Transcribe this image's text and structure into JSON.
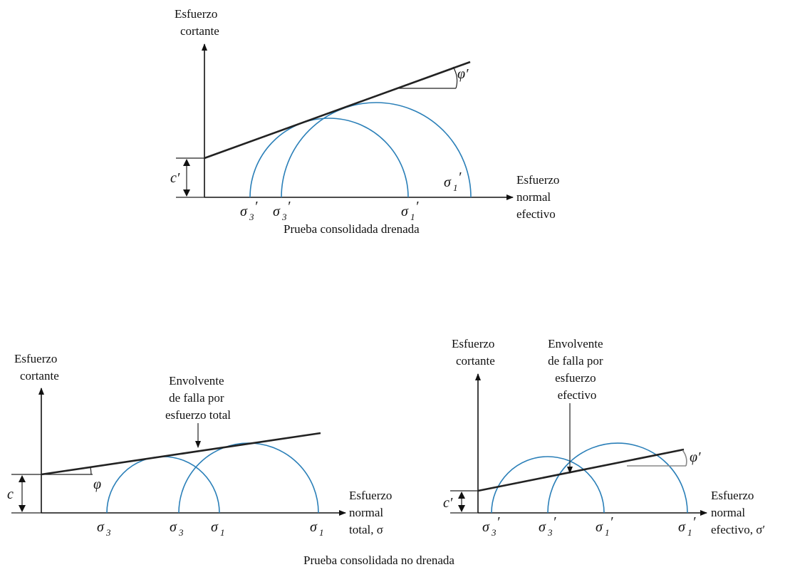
{
  "top": {
    "y_label": [
      "Esfuerzo",
      "cortante"
    ],
    "x_label": [
      "Esfuerzo",
      "normal",
      "efectivo"
    ],
    "intercept_label": "c′",
    "angle_label": "φ′",
    "stress_labels": {
      "s3a": "3",
      "s3b": "3",
      "s1a": "1",
      "s1b": "1"
    },
    "caption": "Prueba consolidada drenada"
  },
  "left": {
    "y_label": [
      "Esfuerzo",
      "cortante"
    ],
    "x_label": [
      "Esfuerzo",
      "normal",
      "total, σ"
    ],
    "intercept_label": "c",
    "angle_label": "φ",
    "envelope_label": [
      "Envolvente",
      "de falla por",
      "esfuerzo total"
    ],
    "stress_labels": {
      "s3a": "3",
      "s3b": "3",
      "s1a": "1",
      "s1b": "1"
    }
  },
  "right": {
    "y_label": [
      "Esfuerzo",
      "cortante"
    ],
    "x_label": [
      "Esfuerzo",
      "normal",
      "efectivo, σ′"
    ],
    "intercept_label": "c′",
    "angle_label": "φ′",
    "envelope_label": [
      "Envolvente",
      "de falla por",
      "esfuerzo",
      "efectivo"
    ],
    "stress_labels": {
      "s3a": "3",
      "s3b": "3",
      "s1a": "1",
      "s1b": "1"
    }
  },
  "bottom_caption": "Prueba consolidada no drenada"
}
